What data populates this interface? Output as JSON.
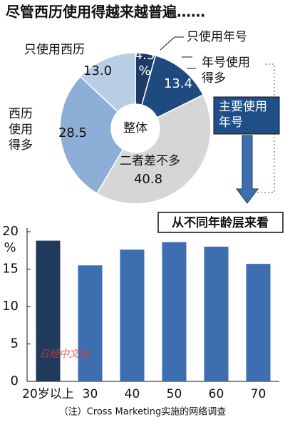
{
  "chart_data": [
    {
      "type": "pie",
      "title": "尽管西历使用得越来越普遍……",
      "center_label": "整体",
      "categories": [
        "只使用年号",
        "年号使用得多",
        "二者差不多",
        "西历使用得多",
        "只使用西历"
      ],
      "values": [
        4.3,
        13.4,
        40.8,
        28.5,
        13.0
      ],
      "value_labels": [
        "4.3%",
        "13.4",
        "40.8",
        "28.5",
        "13.0"
      ],
      "colors": [
        "#1f3a64",
        "#1e4a80",
        "#d6d6d6",
        "#8daed6",
        "#b8cde6"
      ],
      "annotation": "主要使用年号"
    },
    {
      "type": "bar",
      "title": "从不同年龄层来看",
      "categories": [
        "20岁以上",
        "30",
        "40",
        "50",
        "60",
        "70"
      ],
      "values": [
        18.8,
        15.5,
        17.6,
        18.6,
        18.0,
        15.7
      ],
      "colors": [
        "#1f3a5c",
        "#3d6eb0",
        "#3d6eb0",
        "#3d6eb0",
        "#3d6eb0",
        "#3d6eb0"
      ],
      "ylabel": "%",
      "ylim": [
        0,
        20
      ],
      "yticks": [
        0,
        5,
        10,
        15,
        20
      ],
      "watermark": "日经中文网",
      "note": "（注）Cross Marketing实施的网络调查"
    }
  ]
}
